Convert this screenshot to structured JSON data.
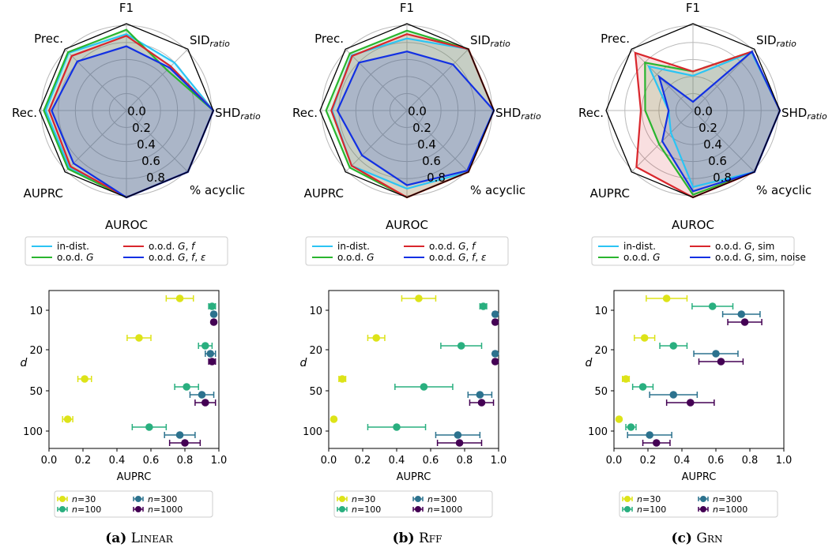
{
  "radar_axes": [
    {
      "key": "f1",
      "label": "F1",
      "sub": ""
    },
    {
      "key": "sid",
      "label": "SID",
      "sub": "ratio"
    },
    {
      "key": "shd",
      "label": "SHD",
      "sub": "ratio"
    },
    {
      "key": "acyclic",
      "label": "% acyclic",
      "sub": ""
    },
    {
      "key": "auroc",
      "label": "AUROC",
      "sub": ""
    },
    {
      "key": "auprc",
      "label": "AUPRC",
      "sub": ""
    },
    {
      "key": "rec",
      "label": "Rec.",
      "sub": ""
    },
    {
      "key": "prec",
      "label": "Prec.",
      "sub": ""
    }
  ],
  "radar_rtick_labels": [
    "0.0",
    "0.2",
    "0.4",
    "0.6",
    "0.8"
  ],
  "scatter_common": {
    "xlabel": "AUPRC",
    "ylabel": "d",
    "xticks": [
      "0.0",
      "0.2",
      "0.4",
      "0.6",
      "0.8",
      "1.0"
    ],
    "yticks": [
      "10",
      "20",
      "50",
      "100"
    ],
    "legend": [
      {
        "n": "30",
        "color": "#dde318"
      },
      {
        "n": "100",
        "color": "#29af7f"
      },
      {
        "n": "300",
        "color": "#2c728e"
      },
      {
        "n": "1000",
        "color": "#440154"
      }
    ]
  },
  "chart_data": [
    {
      "type": "radar",
      "caption": {
        "letter": "(a)",
        "name": "Linear"
      },
      "legend": [
        "in-dist.",
        "o.o.d. G",
        "o.o.d. G, f",
        "o.o.d. G, f, ε"
      ],
      "series": [
        {
          "legend": "in-dist.",
          "color": "#2bc4f4",
          "values": [
            0.88,
            0.78,
            1.0,
            1.0,
            1.0,
            0.93,
            0.93,
            0.94
          ]
        },
        {
          "legend": "o.o.d. G",
          "color": "#2ab52f",
          "values": [
            0.93,
            0.66,
            1.0,
            1.0,
            1.0,
            0.95,
            0.95,
            0.95
          ]
        },
        {
          "legend": "o.o.d. G, f",
          "color": "#d9262c",
          "values": [
            0.86,
            0.72,
            1.0,
            1.0,
            1.0,
            0.91,
            0.89,
            0.89
          ]
        },
        {
          "legend": "o.o.d. G, f, ε",
          "color": "#1230e3",
          "values": [
            0.74,
            0.7,
            1.0,
            1.0,
            1.0,
            0.86,
            0.86,
            0.8
          ]
        }
      ],
      "errorbar": {
        "rows": [
          {
            "d": "10",
            "points": [
              {
                "n": "30",
                "x": 0.77,
                "err": 0.08
              },
              {
                "n": "100",
                "x": 0.96,
                "err": 0.02
              },
              {
                "n": "300",
                "x": 0.97,
                "err": 0.01
              },
              {
                "n": "1000",
                "x": 0.97,
                "err": 0.01
              }
            ]
          },
          {
            "d": "20",
            "points": [
              {
                "n": "30",
                "x": 0.53,
                "err": 0.07
              },
              {
                "n": "100",
                "x": 0.92,
                "err": 0.04
              },
              {
                "n": "300",
                "x": 0.95,
                "err": 0.03
              },
              {
                "n": "1000",
                "x": 0.96,
                "err": 0.02
              }
            ]
          },
          {
            "d": "50",
            "points": [
              {
                "n": "30",
                "x": 0.21,
                "err": 0.04
              },
              {
                "n": "100",
                "x": 0.81,
                "err": 0.07
              },
              {
                "n": "300",
                "x": 0.9,
                "err": 0.07
              },
              {
                "n": "1000",
                "x": 0.92,
                "err": 0.06
              }
            ]
          },
          {
            "d": "100",
            "points": [
              {
                "n": "30",
                "x": 0.11,
                "err": 0.03
              },
              {
                "n": "100",
                "x": 0.59,
                "err": 0.1
              },
              {
                "n": "300",
                "x": 0.77,
                "err": 0.09
              },
              {
                "n": "1000",
                "x": 0.8,
                "err": 0.09
              }
            ]
          }
        ]
      }
    },
    {
      "type": "radar",
      "caption": {
        "letter": "(b)",
        "name": "Rff"
      },
      "legend": [
        "in-dist.",
        "o.o.d. G",
        "o.o.d. G, f",
        "o.o.d. G, f, ε"
      ],
      "series": [
        {
          "legend": "in-dist.",
          "color": "#2bc4f4",
          "values": [
            0.83,
            1.0,
            1.0,
            1.0,
            0.9,
            0.9,
            0.86,
            0.9
          ]
        },
        {
          "legend": "o.o.d. G",
          "color": "#2ab52f",
          "values": [
            0.92,
            1.0,
            1.0,
            1.0,
            1.0,
            0.93,
            0.93,
            0.93
          ]
        },
        {
          "legend": "o.o.d. G, f",
          "color": "#d9262c",
          "values": [
            0.88,
            1.0,
            1.0,
            1.0,
            1.0,
            0.9,
            0.87,
            0.89
          ]
        },
        {
          "legend": "o.o.d. G, f, ε",
          "color": "#1230e3",
          "values": [
            0.68,
            0.75,
            1.0,
            0.98,
            0.86,
            0.73,
            0.8,
            0.78
          ]
        }
      ],
      "errorbar": {
        "rows": [
          {
            "d": "10",
            "points": [
              {
                "n": "30",
                "x": 0.53,
                "err": 0.1
              },
              {
                "n": "100",
                "x": 0.91,
                "err": 0.02
              },
              {
                "n": "300",
                "x": 0.98,
                "err": 0.01
              },
              {
                "n": "1000",
                "x": 0.98,
                "err": 0.01
              }
            ]
          },
          {
            "d": "20",
            "points": [
              {
                "n": "30",
                "x": 0.28,
                "err": 0.05
              },
              {
                "n": "100",
                "x": 0.78,
                "err": 0.12
              },
              {
                "n": "300",
                "x": 0.98,
                "err": 0.01
              },
              {
                "n": "1000",
                "x": 0.98,
                "err": 0.01
              }
            ]
          },
          {
            "d": "50",
            "points": [
              {
                "n": "30",
                "x": 0.08,
                "err": 0.02
              },
              {
                "n": "100",
                "x": 0.56,
                "err": 0.17
              },
              {
                "n": "300",
                "x": 0.89,
                "err": 0.07
              },
              {
                "n": "1000",
                "x": 0.9,
                "err": 0.07
              }
            ]
          },
          {
            "d": "100",
            "points": [
              {
                "n": "30",
                "x": 0.03,
                "err": 0.0
              },
              {
                "n": "100",
                "x": 0.4,
                "err": 0.17
              },
              {
                "n": "300",
                "x": 0.76,
                "err": 0.13
              },
              {
                "n": "1000",
                "x": 0.77,
                "err": 0.13
              }
            ]
          }
        ]
      }
    },
    {
      "type": "radar",
      "caption": {
        "letter": "(c)",
        "name": "Grn"
      },
      "legend": [
        "in-dist.",
        "o.o.d. G",
        "o.o.d. G, sim",
        "o.o.d. G, sim, noise"
      ],
      "series": [
        {
          "legend": "in-dist.",
          "color": "#2bc4f4",
          "values": [
            0.4,
            0.95,
            1.0,
            1.0,
            0.88,
            0.36,
            0.28,
            0.72
          ]
        },
        {
          "legend": "o.o.d. G",
          "color": "#2ab52f",
          "values": [
            0.45,
            0.96,
            1.0,
            1.0,
            0.97,
            0.55,
            0.55,
            0.78
          ]
        },
        {
          "legend": "o.o.d. G, sim",
          "color": "#d9262c",
          "values": [
            0.45,
            0.96,
            1.0,
            1.0,
            1.0,
            0.92,
            0.6,
            0.94
          ]
        },
        {
          "legend": "o.o.d. G, sim, noise",
          "color": "#1230e3",
          "values": [
            0.1,
            0.96,
            1.0,
            1.0,
            0.93,
            0.5,
            0.28,
            0.55
          ]
        }
      ],
      "errorbar": {
        "rows": [
          {
            "d": "10",
            "points": [
              {
                "n": "30",
                "x": 0.31,
                "err": 0.12
              },
              {
                "n": "100",
                "x": 0.58,
                "err": 0.12
              },
              {
                "n": "300",
                "x": 0.75,
                "err": 0.11
              },
              {
                "n": "1000",
                "x": 0.77,
                "err": 0.1
              }
            ]
          },
          {
            "d": "20",
            "points": [
              {
                "n": "30",
                "x": 0.18,
                "err": 0.06
              },
              {
                "n": "100",
                "x": 0.35,
                "err": 0.08
              },
              {
                "n": "300",
                "x": 0.6,
                "err": 0.13
              },
              {
                "n": "1000",
                "x": 0.63,
                "err": 0.13
              }
            ]
          },
          {
            "d": "50",
            "points": [
              {
                "n": "30",
                "x": 0.07,
                "err": 0.02
              },
              {
                "n": "100",
                "x": 0.17,
                "err": 0.06
              },
              {
                "n": "300",
                "x": 0.35,
                "err": 0.14
              },
              {
                "n": "1000",
                "x": 0.45,
                "err": 0.14
              }
            ]
          },
          {
            "d": "100",
            "points": [
              {
                "n": "30",
                "x": 0.03,
                "err": 0.0
              },
              {
                "n": "100",
                "x": 0.1,
                "err": 0.03
              },
              {
                "n": "300",
                "x": 0.21,
                "err": 0.13
              },
              {
                "n": "1000",
                "x": 0.25,
                "err": 0.08
              }
            ]
          }
        ]
      }
    }
  ]
}
